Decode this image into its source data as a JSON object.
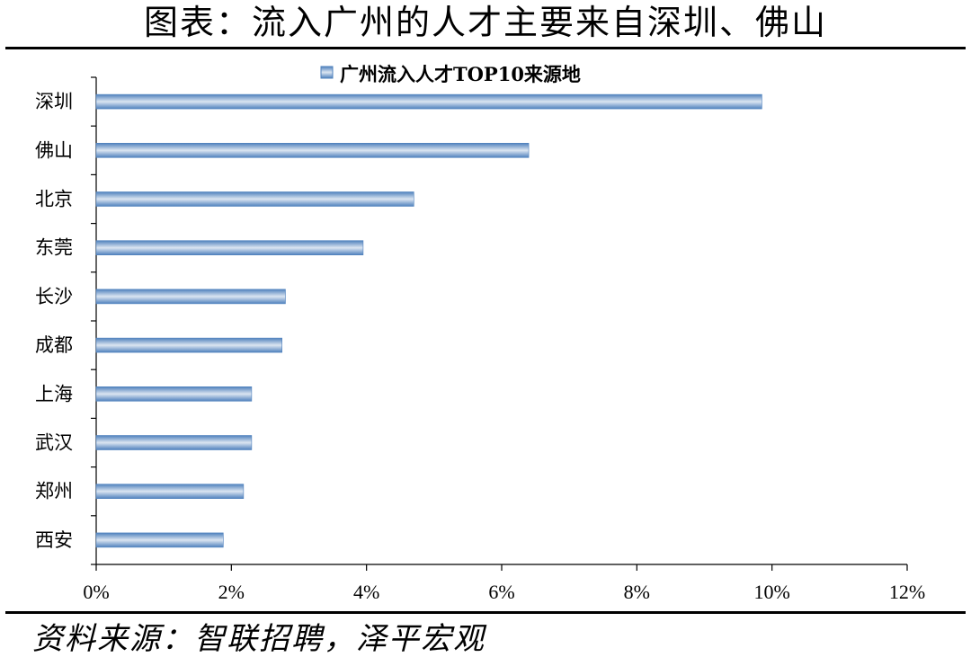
{
  "header": {
    "title": "图表：流入广州的人才主要来自深圳、佛山"
  },
  "footer": {
    "source": "资料来源：智联招聘，泽平宏观"
  },
  "colors": {
    "bar": "#4f81bd",
    "bar_light": "#dbe5f1",
    "axis": "#000000"
  },
  "chart_data": {
    "type": "bar",
    "orientation": "horizontal",
    "title": "",
    "categories": [
      "深圳",
      "佛山",
      "北京",
      "东莞",
      "长沙",
      "成都",
      "上海",
      "武汉",
      "郑州",
      "西安"
    ],
    "series": [
      {
        "name": "广州流入人才TOP10来源地",
        "values": [
          9.85,
          6.4,
          4.7,
          3.95,
          2.8,
          2.75,
          2.3,
          2.3,
          2.18,
          1.88
        ]
      }
    ],
    "xlim": [
      0,
      12
    ],
    "xticks": [
      "0%",
      "2%",
      "4%",
      "6%",
      "8%",
      "10%",
      "12%"
    ],
    "xlabel": "",
    "ylabel": "",
    "legend": "top",
    "grid": false
  }
}
